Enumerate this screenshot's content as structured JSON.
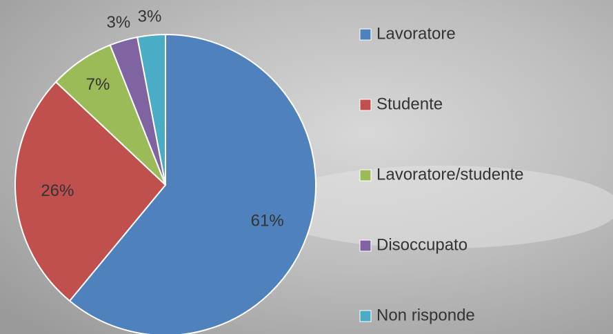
{
  "chart_data": {
    "type": "pie",
    "categories": [
      "Lavoratore",
      "Studente",
      "Lavoratore/studente",
      "Disoccupato",
      "Non risponde"
    ],
    "values": [
      61,
      26,
      7,
      3,
      3
    ],
    "value_labels": [
      "61%",
      "26%",
      "7%",
      "3%",
      "3%"
    ],
    "colors": [
      "#4f81bd",
      "#c0504d",
      "#9bbb59",
      "#8064a2",
      "#4bacc6"
    ],
    "legend": "right"
  }
}
